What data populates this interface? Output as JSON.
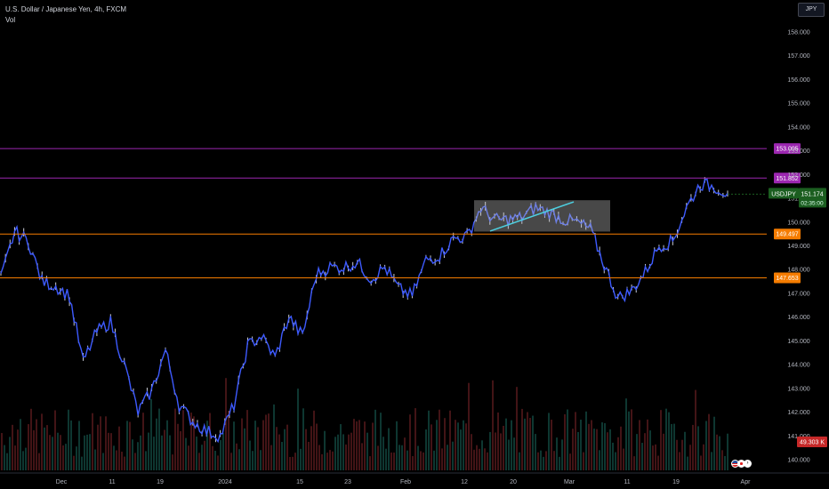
{
  "legend": {
    "symbol_title": "U.S. Dollar / Japanese Yen, 4h, FXCM",
    "indicator": "Vol"
  },
  "currency_button": "JPY",
  "price_axis": {
    "ticks": [
      "158.000",
      "157.000",
      "156.000",
      "155.000",
      "154.000",
      "153.000",
      "152.000",
      "151.000",
      "150.000",
      "149.000",
      "148.000",
      "147.000",
      "146.000",
      "145.000",
      "144.000",
      "143.000",
      "142.000",
      "141.000",
      "140.000"
    ]
  },
  "time_axis": {
    "ticks": [
      "Dec",
      "11",
      "19",
      "2024",
      "15",
      "23",
      "Feb",
      "12",
      "20",
      "Mar",
      "11",
      "19",
      "Apr"
    ]
  },
  "horizontal_lines": [
    {
      "price": 153.095,
      "label": "153.095",
      "color": "#9c27b0"
    },
    {
      "price": 151.852,
      "label": "151.852",
      "color": "#9c27b0"
    },
    {
      "price": 149.497,
      "label": "149.497",
      "color": "#f57c00"
    },
    {
      "price": 147.653,
      "label": "147.653",
      "color": "#f57c00"
    }
  ],
  "last_price": {
    "symbol": "USDJPY",
    "price": "151.174",
    "countdown": "02:35:00",
    "color": "#1b5e20"
  },
  "volume_label": {
    "value": "49.303 K",
    "color": "#c62828"
  },
  "chart_data": {
    "type": "line",
    "symbol": "USDJPY",
    "interval": "4h",
    "series": [
      {
        "x": [
          "Nov 22",
          "Nov 24",
          "Nov 27",
          "Nov 29",
          "Dec 1",
          "Dec 4",
          "Dec 6",
          "Dec 8",
          "Dec 11",
          "Dec 13",
          "Dec 15",
          "Dec 18",
          "Dec 19",
          "Dec 21",
          "Dec 25",
          "Dec 27",
          "Dec 29",
          "Jan 1",
          "Jan 3",
          "Jan 5",
          "Jan 8",
          "Jan 10",
          "Jan 12",
          "Jan 15",
          "Jan 17",
          "Jan 19",
          "Jan 22",
          "Jan 24",
          "Jan 26",
          "Jan 29",
          "Jan 31",
          "Feb 2",
          "Feb 5",
          "Feb 7",
          "Feb 9",
          "Feb 12",
          "Feb 14",
          "Feb 16",
          "Feb 20",
          "Feb 22",
          "Feb 26",
          "Feb 28",
          "Mar 1",
          "Mar 4",
          "Mar 6",
          "Mar 8",
          "Mar 11",
          "Mar 13",
          "Mar 15",
          "Mar 18",
          "Mar 19",
          "Mar 21",
          "Mar 25",
          "Mar 27"
        ],
        "values": [
          147.6,
          149.6,
          149.2,
          147.5,
          147.3,
          146.9,
          144.1,
          145.4,
          145.8,
          144.0,
          142.0,
          142.9,
          144.6,
          142.3,
          141.6,
          141.2,
          141.0,
          142.3,
          144.8,
          145.2,
          144.3,
          146.0,
          145.2,
          147.8,
          148.1,
          148.1,
          148.3,
          147.6,
          148.1,
          147.2,
          146.9,
          148.4,
          148.6,
          149.3,
          149.4,
          150.6,
          150.1,
          150.1,
          150.2,
          150.6,
          150.4,
          150.1,
          150.0,
          149.7,
          148.2,
          146.8,
          147.1,
          147.9,
          149.0,
          149.2,
          150.6,
          151.6,
          151.5,
          151.2
        ]
      }
    ],
    "ylim": [
      139.5,
      158.8
    ],
    "annotations": [
      "consolidation box Feb 12 – Mar 1, 149.6–150.9",
      "uptrend line Feb 14 149.6 to Feb 29 150.8"
    ]
  }
}
